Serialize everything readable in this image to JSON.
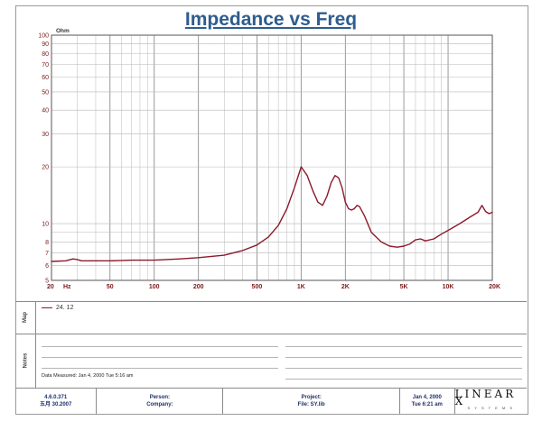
{
  "chart_data": {
    "type": "line",
    "title": "Impedance vs Freq",
    "ylabel": "Ohm",
    "xlabel": "Hz",
    "x_scale": "log",
    "y_scale": "log",
    "xlim": [
      20,
      20000
    ],
    "ylim": [
      5,
      100
    ],
    "grid": true,
    "x_ticks": [
      {
        "value": 20,
        "label": "20"
      },
      {
        "value": 50,
        "label": "50"
      },
      {
        "value": 100,
        "label": "100"
      },
      {
        "value": 200,
        "label": "200"
      },
      {
        "value": 500,
        "label": "500"
      },
      {
        "value": 1000,
        "label": "1K"
      },
      {
        "value": 2000,
        "label": "2K"
      },
      {
        "value": 5000,
        "label": "5K"
      },
      {
        "value": 10000,
        "label": "10K"
      },
      {
        "value": 20000,
        "label": "20K"
      }
    ],
    "y_ticks": [
      {
        "value": 5,
        "label": "5"
      },
      {
        "value": 6,
        "label": "6"
      },
      {
        "value": 7,
        "label": "7"
      },
      {
        "value": 8,
        "label": "8"
      },
      {
        "value": 10,
        "label": "10"
      },
      {
        "value": 20,
        "label": "20"
      },
      {
        "value": 30,
        "label": "30"
      },
      {
        "value": 40,
        "label": "40"
      },
      {
        "value": 50,
        "label": "50"
      },
      {
        "value": 60,
        "label": "60"
      },
      {
        "value": 70,
        "label": "70"
      },
      {
        "value": 80,
        "label": "80"
      },
      {
        "value": 90,
        "label": "90"
      },
      {
        "value": 100,
        "label": "100"
      }
    ],
    "series": [
      {
        "name": "24. 12",
        "color": "#8b1a2b",
        "x": [
          20,
          25,
          28,
          30,
          32,
          40,
          50,
          70,
          100,
          150,
          200,
          300,
          400,
          500,
          600,
          700,
          800,
          900,
          1000,
          1100,
          1200,
          1300,
          1400,
          1500,
          1600,
          1700,
          1800,
          1900,
          2000,
          2100,
          2200,
          2300,
          2400,
          2500,
          2700,
          3000,
          3500,
          4000,
          4500,
          5000,
          5500,
          6000,
          6500,
          7000,
          8000,
          9000,
          10000,
          12000,
          14000,
          16000,
          17000,
          18000,
          19000,
          20000
        ],
        "y": [
          6.3,
          6.35,
          6.5,
          6.45,
          6.35,
          6.35,
          6.35,
          6.4,
          6.4,
          6.5,
          6.6,
          6.8,
          7.2,
          7.7,
          8.5,
          9.8,
          12.0,
          15.5,
          20.0,
          18.0,
          15.0,
          13.0,
          12.5,
          14.0,
          16.5,
          18.0,
          17.5,
          15.5,
          13.0,
          12.0,
          11.8,
          12.0,
          12.5,
          12.3,
          11.0,
          9.0,
          8.0,
          7.6,
          7.5,
          7.6,
          7.8,
          8.2,
          8.3,
          8.1,
          8.3,
          8.8,
          9.2,
          10.0,
          10.8,
          11.5,
          12.5,
          11.6,
          11.3,
          11.5
        ]
      }
    ]
  },
  "legend": {
    "entries": [
      {
        "name": "24. 12"
      }
    ]
  },
  "side_tabs": {
    "map": "Map",
    "notes": "Notes"
  },
  "notes": {
    "data_measured": "Data Measured: Jan 4, 2000  Tue  5:16 am"
  },
  "footer": {
    "version": "4.6.0.371",
    "version_date": "五月 30.2007",
    "person_label": "Person:",
    "company_label": "Company:",
    "project_label": "Project:",
    "file_label": "File: SY.lib",
    "date": "Jan 4, 2000",
    "time": "Tue  6:21 am",
    "logo": "LINEAR X",
    "logo_sub": "S Y S T E M S"
  }
}
